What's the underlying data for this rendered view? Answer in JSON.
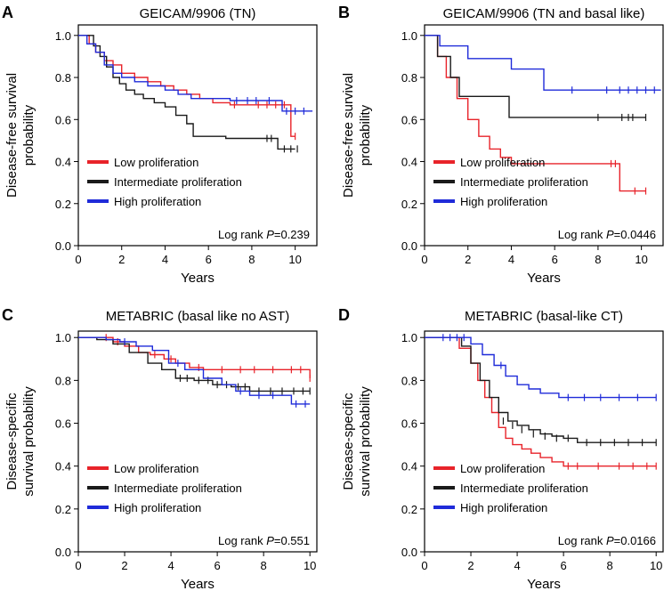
{
  "chart_data": [
    {
      "type": "line",
      "panel_letter": "A",
      "title": "GEICAM/9906 (TN)",
      "xlabel": "Years",
      "ylabel": [
        "Disease-free survival",
        "probability"
      ],
      "xlim": [
        0,
        11
      ],
      "ylim": [
        0,
        1.05
      ],
      "xticks": [
        "0",
        "2",
        "4",
        "6",
        "8",
        "10"
      ],
      "yticks": [
        "0.0",
        "0.2",
        "0.4",
        "0.6",
        "0.8",
        "1.0"
      ],
      "legend": "bottom-left",
      "annotation": {
        "prefix": "Log rank ",
        "p_label": "P",
        "p_value": "=0.239"
      },
      "series": [
        {
          "name": "Low proliferation",
          "color": "#e8232a",
          "x": [
            0,
            0.5,
            0.8,
            1.2,
            1.6,
            2.0,
            2.6,
            3.2,
            3.8,
            4.4,
            5.0,
            5.6,
            6.2,
            7.0,
            8.0,
            9.8,
            10.0
          ],
          "y": [
            1.0,
            0.96,
            0.92,
            0.88,
            0.86,
            0.82,
            0.8,
            0.78,
            0.76,
            0.74,
            0.72,
            0.7,
            0.68,
            0.67,
            0.67,
            0.52,
            0.52
          ],
          "censors": [
            [
              7.2,
              0.67
            ],
            [
              8.3,
              0.67
            ],
            [
              8.7,
              0.67
            ],
            [
              9.1,
              0.67
            ],
            [
              9.5,
              0.67
            ],
            [
              10.0,
              0.52
            ]
          ]
        },
        {
          "name": "Intermediate proliferation",
          "color": "#1a1a1a",
          "x": [
            0,
            0.7,
            1.0,
            1.3,
            1.6,
            1.9,
            2.2,
            2.6,
            3.0,
            3.5,
            4.0,
            4.5,
            5.0,
            5.3,
            6.0,
            6.8,
            8.5,
            9.2,
            10.0
          ],
          "y": [
            1.0,
            0.95,
            0.9,
            0.85,
            0.8,
            0.77,
            0.74,
            0.72,
            0.7,
            0.68,
            0.66,
            0.62,
            0.58,
            0.52,
            0.52,
            0.51,
            0.51,
            0.46,
            0.46
          ],
          "censors": [
            [
              8.7,
              0.51
            ],
            [
              8.9,
              0.51
            ],
            [
              9.5,
              0.46
            ],
            [
              9.8,
              0.46
            ],
            [
              10.1,
              0.46
            ]
          ]
        },
        {
          "name": "High proliferation",
          "color": "#1f2bd9",
          "x": [
            0,
            0.4,
            0.8,
            1.2,
            1.6,
            2.0,
            2.6,
            3.2,
            4.0,
            4.6,
            5.2,
            6.0,
            7.0,
            9.4,
            10.8
          ],
          "y": [
            1.0,
            0.96,
            0.92,
            0.86,
            0.82,
            0.8,
            0.78,
            0.76,
            0.74,
            0.72,
            0.7,
            0.7,
            0.69,
            0.64,
            0.64
          ],
          "censors": [
            [
              7.3,
              0.69
            ],
            [
              7.8,
              0.69
            ],
            [
              8.2,
              0.69
            ],
            [
              8.8,
              0.69
            ],
            [
              9.6,
              0.64
            ],
            [
              10.0,
              0.64
            ],
            [
              10.4,
              0.64
            ]
          ]
        }
      ]
    },
    {
      "type": "line",
      "panel_letter": "B",
      "title": "GEICAM/9906 (TN and basal like)",
      "xlabel": "Years",
      "ylabel": [
        "Disease-free survival",
        "probability"
      ],
      "xlim": [
        0,
        11
      ],
      "ylim": [
        0,
        1.05
      ],
      "xticks": [
        "0",
        "2",
        "4",
        "6",
        "8",
        "10"
      ],
      "yticks": [
        "0.0",
        "0.2",
        "0.4",
        "0.6",
        "0.8",
        "1.0"
      ],
      "legend": "bottom-left",
      "annotation": {
        "prefix": "Log rank ",
        "p_label": "P",
        "p_value": "=0.0446"
      },
      "series": [
        {
          "name": "Low proliferation",
          "color": "#e8232a",
          "x": [
            0,
            0.6,
            1.0,
            1.5,
            2.0,
            2.5,
            3.0,
            3.5,
            4.0,
            5.0,
            8.9,
            9.0,
            10.2
          ],
          "y": [
            1.0,
            0.9,
            0.8,
            0.7,
            0.6,
            0.52,
            0.46,
            0.42,
            0.39,
            0.39,
            0.39,
            0.26,
            0.26
          ],
          "censors": [
            [
              8.6,
              0.39
            ],
            [
              8.8,
              0.39
            ],
            [
              9.7,
              0.26
            ],
            [
              10.2,
              0.26
            ]
          ]
        },
        {
          "name": "Intermediate proliferation",
          "color": "#1a1a1a",
          "x": [
            0,
            0.6,
            1.2,
            1.6,
            3.9,
            10.2
          ],
          "y": [
            1.0,
            0.9,
            0.8,
            0.71,
            0.61,
            0.61
          ],
          "censors": [
            [
              8.0,
              0.61
            ],
            [
              9.1,
              0.61
            ],
            [
              9.4,
              0.61
            ],
            [
              9.6,
              0.61
            ],
            [
              10.2,
              0.61
            ]
          ]
        },
        {
          "name": "High proliferation",
          "color": "#1f2bd9",
          "x": [
            0,
            0.7,
            2.0,
            4.0,
            5.5,
            10.9
          ],
          "y": [
            1.0,
            0.95,
            0.89,
            0.84,
            0.74,
            0.74
          ],
          "censors": [
            [
              6.8,
              0.74
            ],
            [
              8.4,
              0.74
            ],
            [
              9.0,
              0.74
            ],
            [
              9.4,
              0.74
            ],
            [
              9.8,
              0.74
            ],
            [
              10.2,
              0.74
            ],
            [
              10.6,
              0.74
            ]
          ]
        }
      ]
    },
    {
      "type": "line",
      "panel_letter": "C",
      "title": "METABRIC (basal like no AST)",
      "xlabel": "Years",
      "ylabel": [
        "Disease-specific",
        "survival probability"
      ],
      "xlim": [
        0,
        10.3
      ],
      "ylim": [
        0,
        1.03
      ],
      "xticks": [
        "0",
        "2",
        "4",
        "6",
        "8",
        "10"
      ],
      "yticks": [
        "0.0",
        "0.2",
        "0.4",
        "0.6",
        "0.8",
        "1.0"
      ],
      "legend": "bottom-left",
      "annotation": {
        "prefix": "Log rank ",
        "p_label": "P",
        "p_value": "=0.551"
      },
      "series": [
        {
          "name": "Low proliferation",
          "color": "#e8232a",
          "x": [
            0,
            1.5,
            2.0,
            2.6,
            3.1,
            3.7,
            4.2,
            4.8,
            5.4,
            9.9,
            10.0
          ],
          "y": [
            1.0,
            0.98,
            0.96,
            0.93,
            0.92,
            0.9,
            0.88,
            0.86,
            0.85,
            0.85,
            0.81
          ],
          "censors": [
            [
              1.2,
              1.0
            ],
            [
              1.7,
              0.98
            ],
            [
              3.3,
              0.92
            ],
            [
              4.0,
              0.9
            ],
            [
              5.2,
              0.86
            ],
            [
              6.2,
              0.85
            ],
            [
              7.0,
              0.85
            ],
            [
              7.6,
              0.85
            ],
            [
              8.4,
              0.85
            ],
            [
              9.2,
              0.85
            ],
            [
              9.6,
              0.85
            ],
            [
              10.0,
              0.81
            ]
          ]
        },
        {
          "name": "Intermediate proliferation",
          "color": "#1a1a1a",
          "x": [
            0,
            0.8,
            1.5,
            2.2,
            3.0,
            3.6,
            4.2,
            5.0,
            5.8,
            6.6,
            7.4,
            10.0
          ],
          "y": [
            1.0,
            0.99,
            0.97,
            0.93,
            0.88,
            0.85,
            0.81,
            0.8,
            0.78,
            0.77,
            0.75,
            0.75
          ],
          "censors": [
            [
              4.4,
              0.81
            ],
            [
              4.7,
              0.81
            ],
            [
              5.2,
              0.8
            ],
            [
              5.6,
              0.8
            ],
            [
              6.0,
              0.78
            ],
            [
              6.4,
              0.78
            ],
            [
              6.9,
              0.77
            ],
            [
              7.2,
              0.77
            ],
            [
              7.8,
              0.75
            ],
            [
              8.3,
              0.75
            ],
            [
              8.8,
              0.75
            ],
            [
              9.3,
              0.75
            ],
            [
              9.7,
              0.75
            ],
            [
              10.0,
              0.75
            ]
          ]
        },
        {
          "name": "High proliferation",
          "color": "#1f2bd9",
          "x": [
            0,
            1.2,
            1.8,
            2.5,
            3.2,
            3.9,
            4.6,
            5.4,
            6.2,
            6.8,
            7.4,
            9.2,
            10.0
          ],
          "y": [
            1.0,
            0.99,
            0.98,
            0.96,
            0.94,
            0.88,
            0.85,
            0.81,
            0.78,
            0.75,
            0.73,
            0.69,
            0.69
          ],
          "censors": [
            [
              2.0,
              0.98
            ],
            [
              4.3,
              0.88
            ],
            [
              7.0,
              0.75
            ],
            [
              7.8,
              0.73
            ],
            [
              8.4,
              0.73
            ],
            [
              9.4,
              0.69
            ],
            [
              9.8,
              0.69
            ]
          ]
        }
      ]
    },
    {
      "type": "line",
      "panel_letter": "D",
      "title": "METABRIC (basal-like CT)",
      "xlabel": "Years",
      "ylabel": [
        "Disease-specific",
        "survival probability"
      ],
      "xlim": [
        0,
        10.3
      ],
      "ylim": [
        0,
        1.03
      ],
      "xticks": [
        "0",
        "2",
        "4",
        "6",
        "8",
        "10"
      ],
      "yticks": [
        "0.0",
        "0.2",
        "0.4",
        "0.6",
        "0.8",
        "1.0"
      ],
      "legend": "bottom-left",
      "annotation": {
        "prefix": "Log rank ",
        "p_label": "P",
        "p_value": "=0.0166"
      },
      "series": [
        {
          "name": "Low proliferation",
          "color": "#e8232a",
          "x": [
            0,
            1.5,
            2.0,
            2.3,
            2.6,
            2.9,
            3.2,
            3.5,
            3.8,
            4.2,
            4.6,
            5.0,
            5.5,
            6.0,
            10.0
          ],
          "y": [
            1.0,
            0.95,
            0.88,
            0.8,
            0.72,
            0.65,
            0.58,
            0.53,
            0.5,
            0.48,
            0.46,
            0.44,
            0.42,
            0.4,
            0.4
          ],
          "censors": [
            [
              6.2,
              0.4
            ],
            [
              6.6,
              0.4
            ],
            [
              7.5,
              0.4
            ],
            [
              8.4,
              0.4
            ],
            [
              9.0,
              0.4
            ],
            [
              9.6,
              0.4
            ],
            [
              10.0,
              0.4
            ]
          ]
        },
        {
          "name": "Intermediate proliferation",
          "color": "#1a1a1a",
          "x": [
            0,
            1.6,
            2.0,
            2.4,
            2.8,
            3.2,
            3.6,
            4.0,
            4.5,
            5.0,
            5.5,
            6.0,
            6.6,
            10.0
          ],
          "y": [
            1.0,
            0.96,
            0.88,
            0.8,
            0.72,
            0.65,
            0.61,
            0.59,
            0.57,
            0.55,
            0.54,
            0.53,
            0.51,
            0.51
          ],
          "censors": [
            [
              3.4,
              0.61
            ],
            [
              3.8,
              0.59
            ],
            [
              4.2,
              0.57
            ],
            [
              4.7,
              0.55
            ],
            [
              5.2,
              0.54
            ],
            [
              5.7,
              0.53
            ],
            [
              6.2,
              0.53
            ],
            [
              7.0,
              0.51
            ],
            [
              7.6,
              0.51
            ],
            [
              8.2,
              0.51
            ],
            [
              8.8,
              0.51
            ],
            [
              9.4,
              0.51
            ],
            [
              10.0,
              0.51
            ]
          ]
        },
        {
          "name": "High proliferation",
          "color": "#1f2bd9",
          "x": [
            0,
            2.0,
            2.5,
            3.0,
            3.5,
            4.0,
            4.5,
            5.0,
            5.8,
            10.0
          ],
          "y": [
            1.0,
            0.97,
            0.92,
            0.87,
            0.82,
            0.78,
            0.76,
            0.74,
            0.72,
            0.72
          ],
          "censors": [
            [
              0.8,
              1.0
            ],
            [
              1.1,
              1.0
            ],
            [
              1.4,
              1.0
            ],
            [
              1.7,
              1.0
            ],
            [
              3.3,
              0.87
            ],
            [
              6.2,
              0.72
            ],
            [
              6.9,
              0.72
            ],
            [
              7.6,
              0.72
            ],
            [
              8.4,
              0.72
            ],
            [
              9.2,
              0.72
            ],
            [
              10.0,
              0.72
            ]
          ]
        }
      ]
    }
  ]
}
